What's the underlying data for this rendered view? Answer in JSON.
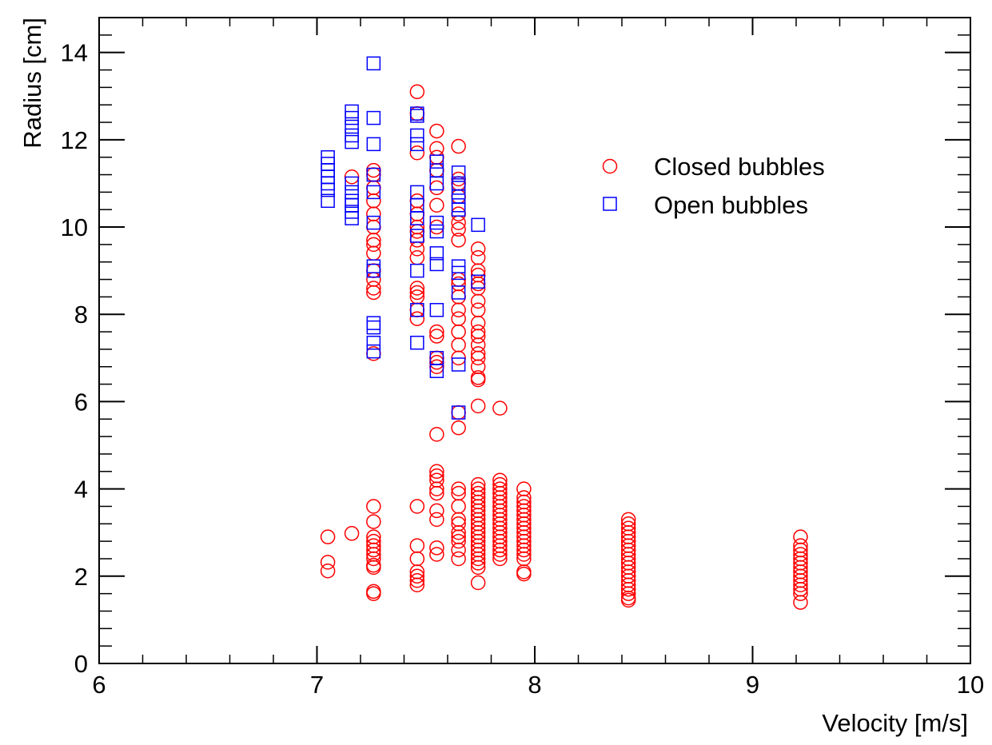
{
  "chart_data": {
    "type": "scatter",
    "title": "",
    "xlabel": "Velocity [m/s]",
    "ylabel": "Radius [cm]",
    "xlim": [
      6,
      10
    ],
    "ylim": [
      0,
      14.8
    ],
    "x_ticks": [
      6,
      7,
      8,
      9,
      10
    ],
    "y_ticks": [
      0,
      2,
      4,
      6,
      8,
      10,
      12,
      14
    ],
    "x_tick_labels": [
      "6",
      "7",
      "8",
      "9",
      "10"
    ],
    "y_tick_labels": [
      "0",
      "2",
      "4",
      "6",
      "8",
      "10",
      "12",
      "14"
    ],
    "grid": false,
    "legend_position": "top-right",
    "series": [
      {
        "name": "Closed bubbles",
        "marker": "circle",
        "color": "#ff0000",
        "points": [
          [
            7.05,
            2.9
          ],
          [
            7.05,
            2.32
          ],
          [
            7.05,
            2.12
          ],
          [
            7.16,
            2.98
          ],
          [
            7.16,
            11.15
          ],
          [
            7.26,
            11.3
          ],
          [
            7.26,
            11.2
          ],
          [
            7.26,
            10.9
          ],
          [
            7.26,
            10.6
          ],
          [
            7.26,
            10.3
          ],
          [
            7.26,
            10.0
          ],
          [
            7.26,
            9.7
          ],
          [
            7.26,
            9.6
          ],
          [
            7.26,
            9.4
          ],
          [
            7.26,
            9.0
          ],
          [
            7.26,
            8.8
          ],
          [
            7.26,
            8.6
          ],
          [
            7.26,
            8.5
          ],
          [
            7.26,
            7.1
          ],
          [
            7.26,
            3.6
          ],
          [
            7.26,
            3.25
          ],
          [
            7.26,
            2.9
          ],
          [
            7.26,
            2.8
          ],
          [
            7.26,
            2.7
          ],
          [
            7.26,
            2.6
          ],
          [
            7.26,
            2.5
          ],
          [
            7.26,
            2.4
          ],
          [
            7.26,
            2.25
          ],
          [
            7.26,
            2.2
          ],
          [
            7.26,
            1.65
          ],
          [
            7.26,
            1.6
          ],
          [
            7.46,
            13.1
          ],
          [
            7.46,
            12.6
          ],
          [
            7.46,
            11.7
          ],
          [
            7.46,
            10.6
          ],
          [
            7.46,
            10.3
          ],
          [
            7.46,
            10.0
          ],
          [
            7.46,
            9.9
          ],
          [
            7.46,
            9.7
          ],
          [
            7.46,
            9.5
          ],
          [
            7.46,
            9.3
          ],
          [
            7.46,
            8.6
          ],
          [
            7.46,
            8.5
          ],
          [
            7.46,
            8.4
          ],
          [
            7.46,
            8.1
          ],
          [
            7.46,
            7.9
          ],
          [
            7.46,
            3.6
          ],
          [
            7.46,
            2.7
          ],
          [
            7.46,
            2.4
          ],
          [
            7.46,
            2.1
          ],
          [
            7.46,
            2.0
          ],
          [
            7.46,
            1.9
          ],
          [
            7.46,
            1.8
          ],
          [
            7.55,
            12.2
          ],
          [
            7.55,
            11.8
          ],
          [
            7.55,
            11.6
          ],
          [
            7.55,
            11.3
          ],
          [
            7.55,
            10.9
          ],
          [
            7.55,
            10.5
          ],
          [
            7.55,
            10.0
          ],
          [
            7.55,
            7.6
          ],
          [
            7.55,
            7.5
          ],
          [
            7.55,
            7.0
          ],
          [
            7.55,
            6.9
          ],
          [
            7.55,
            6.8
          ],
          [
            7.55,
            5.25
          ],
          [
            7.55,
            4.4
          ],
          [
            7.55,
            4.3
          ],
          [
            7.55,
            4.2
          ],
          [
            7.55,
            4.0
          ],
          [
            7.55,
            3.9
          ],
          [
            7.55,
            3.5
          ],
          [
            7.55,
            3.3
          ],
          [
            7.55,
            2.65
          ],
          [
            7.55,
            2.5
          ],
          [
            7.65,
            11.85
          ],
          [
            7.65,
            11.1
          ],
          [
            7.65,
            11.0
          ],
          [
            7.65,
            10.7
          ],
          [
            7.65,
            10.3
          ],
          [
            7.65,
            10.1
          ],
          [
            7.65,
            9.95
          ],
          [
            7.65,
            9.7
          ],
          [
            7.65,
            8.8
          ],
          [
            7.65,
            8.7
          ],
          [
            7.65,
            8.4
          ],
          [
            7.65,
            8.1
          ],
          [
            7.65,
            7.9
          ],
          [
            7.65,
            7.6
          ],
          [
            7.65,
            7.3
          ],
          [
            7.65,
            7.0
          ],
          [
            7.65,
            5.75
          ],
          [
            7.65,
            5.4
          ],
          [
            7.65,
            4.0
          ],
          [
            7.65,
            3.9
          ],
          [
            7.65,
            3.6
          ],
          [
            7.65,
            3.3
          ],
          [
            7.65,
            3.2
          ],
          [
            7.65,
            3.0
          ],
          [
            7.65,
            2.9
          ],
          [
            7.65,
            2.8
          ],
          [
            7.65,
            2.6
          ],
          [
            7.65,
            2.4
          ],
          [
            7.74,
            9.5
          ],
          [
            7.74,
            9.3
          ],
          [
            7.74,
            9.0
          ],
          [
            7.74,
            8.9
          ],
          [
            7.74,
            8.7
          ],
          [
            7.74,
            8.6
          ],
          [
            7.74,
            8.3
          ],
          [
            7.74,
            8.1
          ],
          [
            7.74,
            7.8
          ],
          [
            7.74,
            7.6
          ],
          [
            7.74,
            7.5
          ],
          [
            7.74,
            7.3
          ],
          [
            7.74,
            7.1
          ],
          [
            7.74,
            7.0
          ],
          [
            7.74,
            6.8
          ],
          [
            7.74,
            6.55
          ],
          [
            7.74,
            6.5
          ],
          [
            7.74,
            5.9
          ],
          [
            7.74,
            4.1
          ],
          [
            7.74,
            4.0
          ],
          [
            7.74,
            3.9
          ],
          [
            7.74,
            3.8
          ],
          [
            7.74,
            3.7
          ],
          [
            7.74,
            3.6
          ],
          [
            7.74,
            3.5
          ],
          [
            7.74,
            3.4
          ],
          [
            7.74,
            3.3
          ],
          [
            7.74,
            3.2
          ],
          [
            7.74,
            3.1
          ],
          [
            7.74,
            3.0
          ],
          [
            7.74,
            2.9
          ],
          [
            7.74,
            2.8
          ],
          [
            7.74,
            2.7
          ],
          [
            7.74,
            2.6
          ],
          [
            7.74,
            2.5
          ],
          [
            7.74,
            2.4
          ],
          [
            7.74,
            2.3
          ],
          [
            7.74,
            2.2
          ],
          [
            7.74,
            1.85
          ],
          [
            7.84,
            5.85
          ],
          [
            7.84,
            4.2
          ],
          [
            7.84,
            4.1
          ],
          [
            7.84,
            4.0
          ],
          [
            7.84,
            3.9
          ],
          [
            7.84,
            3.8
          ],
          [
            7.84,
            3.7
          ],
          [
            7.84,
            3.6
          ],
          [
            7.84,
            3.5
          ],
          [
            7.84,
            3.4
          ],
          [
            7.84,
            3.3
          ],
          [
            7.84,
            3.2
          ],
          [
            7.84,
            3.1
          ],
          [
            7.84,
            3.0
          ],
          [
            7.84,
            2.9
          ],
          [
            7.84,
            2.8
          ],
          [
            7.84,
            2.7
          ],
          [
            7.84,
            2.6
          ],
          [
            7.84,
            2.5
          ],
          [
            7.84,
            2.4
          ],
          [
            7.95,
            4.0
          ],
          [
            7.95,
            3.8
          ],
          [
            7.95,
            3.7
          ],
          [
            7.95,
            3.6
          ],
          [
            7.95,
            3.5
          ],
          [
            7.95,
            3.4
          ],
          [
            7.95,
            3.3
          ],
          [
            7.95,
            3.2
          ],
          [
            7.95,
            3.1
          ],
          [
            7.95,
            3.0
          ],
          [
            7.95,
            2.9
          ],
          [
            7.95,
            2.8
          ],
          [
            7.95,
            2.7
          ],
          [
            7.95,
            2.6
          ],
          [
            7.95,
            2.5
          ],
          [
            7.95,
            2.4
          ],
          [
            7.95,
            2.1
          ],
          [
            7.95,
            2.05
          ],
          [
            8.43,
            3.3
          ],
          [
            8.43,
            3.2
          ],
          [
            8.43,
            3.1
          ],
          [
            8.43,
            3.0
          ],
          [
            8.43,
            2.9
          ],
          [
            8.43,
            2.8
          ],
          [
            8.43,
            2.7
          ],
          [
            8.43,
            2.6
          ],
          [
            8.43,
            2.5
          ],
          [
            8.43,
            2.4
          ],
          [
            8.43,
            2.3
          ],
          [
            8.43,
            2.2
          ],
          [
            8.43,
            2.1
          ],
          [
            8.43,
            2.0
          ],
          [
            8.43,
            1.9
          ],
          [
            8.43,
            1.8
          ],
          [
            8.43,
            1.7
          ],
          [
            8.43,
            1.6
          ],
          [
            8.43,
            1.5
          ],
          [
            8.43,
            1.45
          ],
          [
            9.22,
            2.9
          ],
          [
            9.22,
            2.7
          ],
          [
            9.22,
            2.6
          ],
          [
            9.22,
            2.5
          ],
          [
            9.22,
            2.4
          ],
          [
            9.22,
            2.3
          ],
          [
            9.22,
            2.2
          ],
          [
            9.22,
            2.1
          ],
          [
            9.22,
            2.0
          ],
          [
            9.22,
            1.9
          ],
          [
            9.22,
            1.8
          ],
          [
            9.22,
            1.7
          ],
          [
            9.22,
            1.6
          ],
          [
            9.22,
            1.4
          ]
        ]
      },
      {
        "name": "Open bubbles",
        "marker": "square",
        "color": "#0000ff",
        "points": [
          [
            7.05,
            11.6
          ],
          [
            7.05,
            11.45
          ],
          [
            7.05,
            11.3
          ],
          [
            7.05,
            11.15
          ],
          [
            7.05,
            11.0
          ],
          [
            7.05,
            10.85
          ],
          [
            7.05,
            10.6
          ],
          [
            7.16,
            12.65
          ],
          [
            7.16,
            12.5
          ],
          [
            7.16,
            12.3
          ],
          [
            7.16,
            12.1
          ],
          [
            7.16,
            11.95
          ],
          [
            7.16,
            11.0
          ],
          [
            7.16,
            10.8
          ],
          [
            7.16,
            10.6
          ],
          [
            7.16,
            10.5
          ],
          [
            7.16,
            10.35
          ],
          [
            7.16,
            10.2
          ],
          [
            7.26,
            13.75
          ],
          [
            7.26,
            12.5
          ],
          [
            7.26,
            11.9
          ],
          [
            7.26,
            11.2
          ],
          [
            7.26,
            10.8
          ],
          [
            7.26,
            10.1
          ],
          [
            7.26,
            9.1
          ],
          [
            7.26,
            9.0
          ],
          [
            7.26,
            7.8
          ],
          [
            7.26,
            7.7
          ],
          [
            7.26,
            7.35
          ],
          [
            7.26,
            7.15
          ],
          [
            7.46,
            12.6
          ],
          [
            7.46,
            12.55
          ],
          [
            7.46,
            12.1
          ],
          [
            7.46,
            11.9
          ],
          [
            7.46,
            10.8
          ],
          [
            7.46,
            10.5
          ],
          [
            7.46,
            10.2
          ],
          [
            7.46,
            9.8
          ],
          [
            7.46,
            9.0
          ],
          [
            7.46,
            8.1
          ],
          [
            7.46,
            7.35
          ],
          [
            7.55,
            11.5
          ],
          [
            7.55,
            11.3
          ],
          [
            7.55,
            11.0
          ],
          [
            7.55,
            10.1
          ],
          [
            7.55,
            9.9
          ],
          [
            7.55,
            9.4
          ],
          [
            7.55,
            9.15
          ],
          [
            7.55,
            8.1
          ],
          [
            7.55,
            7.0
          ],
          [
            7.55,
            6.7
          ],
          [
            7.65,
            11.25
          ],
          [
            7.65,
            11.0
          ],
          [
            7.65,
            10.9
          ],
          [
            7.65,
            10.7
          ],
          [
            7.65,
            10.5
          ],
          [
            7.65,
            10.4
          ],
          [
            7.65,
            9.1
          ],
          [
            7.65,
            8.95
          ],
          [
            7.65,
            8.5
          ],
          [
            7.65,
            6.85
          ],
          [
            7.65,
            5.75
          ],
          [
            7.74,
            10.05
          ],
          [
            7.74,
            8.75
          ]
        ]
      }
    ]
  }
}
